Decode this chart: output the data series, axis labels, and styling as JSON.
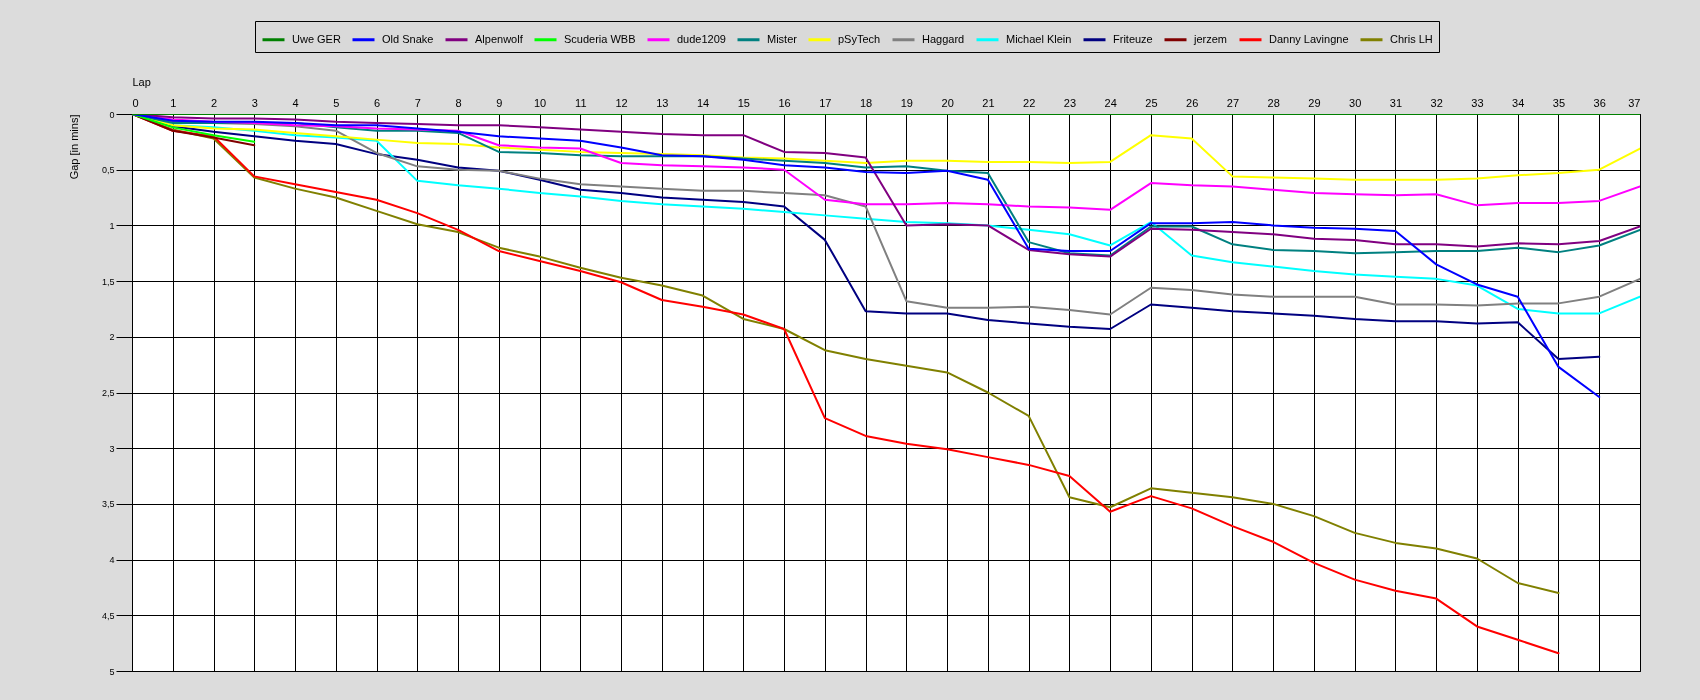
{
  "chart_data": {
    "type": "line",
    "xlabel": "Lap",
    "ylabel": "Gap [in mins]",
    "x": [
      0,
      1,
      2,
      3,
      4,
      5,
      6,
      7,
      8,
      9,
      10,
      11,
      12,
      13,
      14,
      15,
      16,
      17,
      18,
      19,
      20,
      21,
      22,
      23,
      24,
      25,
      26,
      27,
      28,
      29,
      30,
      31,
      32,
      33,
      34,
      35,
      36,
      37
    ],
    "xlim": [
      0,
      37
    ],
    "xticks": [
      0,
      1,
      2,
      3,
      4,
      5,
      6,
      7,
      8,
      9,
      10,
      11,
      12,
      13,
      14,
      15,
      16,
      17,
      18,
      19,
      20,
      21,
      22,
      23,
      24,
      25,
      26,
      27,
      28,
      29,
      30,
      31,
      32,
      33,
      34,
      35,
      36,
      37
    ],
    "ylim": [
      5,
      0
    ],
    "yticks": [
      0,
      {
        "value": 0.5,
        "label": "0,5"
      },
      1,
      {
        "value": 1.5,
        "label": "1,5"
      },
      2,
      {
        "value": 2.5,
        "label": "2,5"
      },
      3,
      {
        "value": 3.5,
        "label": "3,5"
      },
      4,
      {
        "value": 4.5,
        "label": "4,5"
      },
      5
    ],
    "grid": true,
    "legend": "top",
    "line_style": "solid",
    "series": [
      {
        "name": "Uwe GER",
        "color": "#008000",
        "values": [
          0,
          0,
          0,
          0,
          0,
          0,
          0,
          0,
          0,
          0,
          0,
          0,
          0,
          0,
          0,
          0,
          0,
          0,
          0,
          0,
          0,
          0,
          0,
          0,
          0,
          0,
          0,
          0,
          0,
          0,
          0,
          0,
          0,
          0,
          0,
          0,
          0,
          0
        ]
      },
      {
        "name": "Old Snake",
        "color": "#0000ff",
        "values": [
          0,
          0.06,
          0.07,
          0.07,
          0.08,
          0.1,
          0.1,
          0.13,
          0.16,
          0.2,
          0.22,
          0.24,
          0.3,
          0.37,
          0.38,
          0.41,
          0.46,
          0.48,
          0.52,
          0.53,
          0.51,
          0.59,
          1.21,
          1.23,
          1.23,
          0.98,
          0.98,
          0.97,
          1.0,
          1.02,
          1.03,
          1.05,
          1.35,
          1.53,
          1.64,
          2.27,
          2.54,
          null
        ]
      },
      {
        "name": "Alpenwolf",
        "color": "#800080",
        "values": [
          0,
          0.03,
          0.04,
          0.04,
          0.05,
          0.07,
          0.08,
          0.09,
          0.1,
          0.1,
          0.12,
          0.14,
          0.16,
          0.18,
          0.19,
          0.19,
          0.34,
          0.35,
          0.39,
          1.0,
          0.99,
          1.0,
          1.22,
          1.26,
          1.28,
          1.03,
          1.04,
          1.06,
          1.08,
          1.12,
          1.13,
          1.17,
          1.17,
          1.19,
          1.16,
          1.17,
          1.14,
          1.01
        ]
      },
      {
        "name": "Scuderia WBB",
        "color": "#00ff00",
        "values": [
          0,
          0.12,
          0.19,
          0.25,
          null,
          null,
          null,
          null,
          null,
          null,
          null,
          null,
          null,
          null,
          null,
          null,
          null,
          null,
          null,
          null,
          null,
          null,
          null,
          null,
          null,
          null,
          null,
          null,
          null,
          null,
          null,
          null,
          null,
          null,
          null,
          null,
          null,
          null
        ]
      },
      {
        "name": "dude1209",
        "color": "#ff00ff",
        "values": [
          0,
          0.05,
          0.07,
          0.08,
          0.1,
          0.11,
          0.13,
          0.14,
          0.15,
          0.28,
          0.3,
          0.31,
          0.44,
          0.46,
          0.47,
          0.48,
          0.5,
          0.77,
          0.81,
          0.81,
          0.8,
          0.81,
          0.83,
          0.84,
          0.86,
          0.62,
          0.64,
          0.65,
          0.68,
          0.71,
          0.72,
          0.73,
          0.72,
          0.82,
          0.8,
          0.8,
          0.78,
          0.65
        ]
      },
      {
        "name": "Mister",
        "color": "#008080",
        "values": [
          0,
          0.08,
          0.08,
          0.08,
          0.08,
          0.12,
          0.15,
          0.15,
          0.17,
          0.34,
          0.35,
          0.37,
          0.38,
          0.38,
          0.38,
          0.4,
          0.42,
          0.44,
          0.48,
          0.47,
          0.51,
          0.53,
          1.15,
          1.25,
          1.27,
          1.01,
          1.01,
          1.17,
          1.22,
          1.23,
          1.25,
          1.24,
          1.23,
          1.23,
          1.2,
          1.24,
          1.18,
          1.04
        ]
      },
      {
        "name": "pSyTech",
        "color": "#ffff00",
        "values": [
          0,
          0.1,
          0.13,
          0.14,
          0.17,
          0.2,
          0.23,
          0.26,
          0.27,
          0.3,
          0.32,
          0.34,
          0.35,
          0.36,
          0.37,
          0.39,
          0.4,
          0.42,
          0.44,
          0.42,
          0.42,
          0.43,
          0.43,
          0.44,
          0.43,
          0.19,
          0.22,
          0.56,
          0.57,
          0.58,
          0.59,
          0.59,
          0.59,
          0.58,
          0.55,
          0.53,
          0.5,
          0.31
        ]
      },
      {
        "name": "Haggard",
        "color": "#808080",
        "values": [
          0,
          0.07,
          0.08,
          0.09,
          0.11,
          0.15,
          0.35,
          0.47,
          0.5,
          0.51,
          0.58,
          0.63,
          0.65,
          0.67,
          0.69,
          0.69,
          0.71,
          0.73,
          0.83,
          1.68,
          1.74,
          1.74,
          1.73,
          1.76,
          1.8,
          1.56,
          1.58,
          1.62,
          1.64,
          1.64,
          1.64,
          1.71,
          1.71,
          1.72,
          1.7,
          1.7,
          1.64,
          1.48
        ]
      },
      {
        "name": "Michael Klein",
        "color": "#00ffff",
        "values": [
          0,
          0.1,
          0.12,
          0.15,
          0.19,
          0.21,
          0.24,
          0.6,
          0.64,
          0.67,
          0.71,
          0.74,
          0.78,
          0.81,
          0.83,
          0.85,
          0.88,
          0.91,
          0.94,
          0.97,
          0.98,
          1.0,
          1.04,
          1.08,
          1.18,
          0.97,
          1.27,
          1.33,
          1.37,
          1.41,
          1.44,
          1.46,
          1.48,
          1.54,
          1.75,
          1.79,
          1.79,
          1.64
        ]
      },
      {
        "name": "Friteuze",
        "color": "#000080",
        "values": [
          0,
          0.11,
          0.16,
          0.2,
          0.24,
          0.27,
          0.36,
          0.41,
          0.48,
          0.51,
          0.59,
          0.68,
          0.71,
          0.75,
          0.77,
          0.79,
          0.83,
          1.13,
          1.77,
          1.79,
          1.79,
          1.85,
          1.88,
          1.91,
          1.93,
          1.71,
          1.74,
          1.77,
          1.79,
          1.81,
          1.84,
          1.86,
          1.86,
          1.88,
          1.87,
          2.2,
          2.18,
          null
        ]
      },
      {
        "name": "jerzem",
        "color": "#800000",
        "values": [
          0,
          0.15,
          0.21,
          0.28,
          null,
          null,
          null,
          null,
          null,
          null,
          null,
          null,
          null,
          null,
          null,
          null,
          null,
          null,
          null,
          null,
          null,
          null,
          null,
          null,
          null,
          null,
          null,
          null,
          null,
          null,
          null,
          null,
          null,
          null,
          null,
          null,
          null,
          null
        ]
      },
      {
        "name": "Danny Lavingne",
        "color": "#ff0000",
        "values": [
          0,
          0.15,
          0.2,
          0.56,
          0.63,
          0.7,
          0.77,
          0.89,
          1.04,
          1.23,
          1.32,
          1.41,
          1.51,
          1.67,
          1.73,
          1.8,
          1.93,
          2.73,
          2.89,
          2.96,
          3.01,
          3.08,
          3.15,
          3.25,
          3.57,
          3.43,
          3.54,
          3.7,
          3.84,
          4.03,
          4.18,
          4.28,
          4.35,
          4.6,
          4.72,
          4.84,
          null,
          null
        ]
      },
      {
        "name": "Chris LH",
        "color": "#808000",
        "values": [
          0,
          0.14,
          0.22,
          0.57,
          0.67,
          0.75,
          0.87,
          0.99,
          1.06,
          1.2,
          1.28,
          1.38,
          1.47,
          1.54,
          1.63,
          1.84,
          1.93,
          2.12,
          2.2,
          2.26,
          2.32,
          2.5,
          2.71,
          3.44,
          3.53,
          3.36,
          3.4,
          3.44,
          3.5,
          3.61,
          3.76,
          3.85,
          3.9,
          3.99,
          4.21,
          4.3,
          null,
          null
        ]
      }
    ]
  }
}
